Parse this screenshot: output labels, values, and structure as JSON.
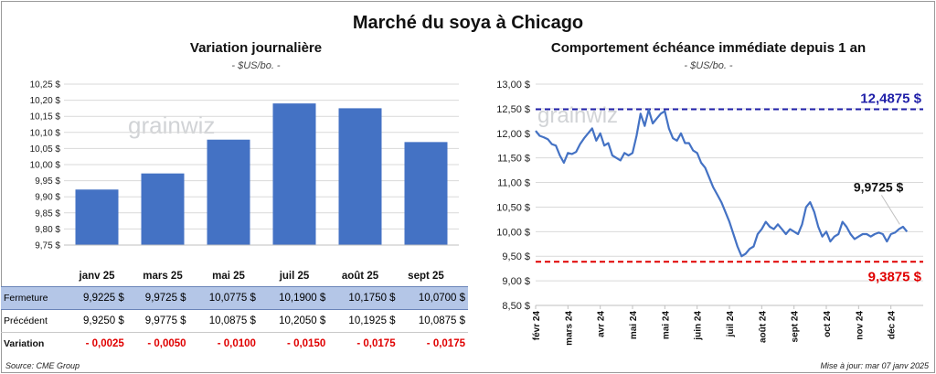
{
  "title": "Marché du soya à Chicago",
  "left": {
    "title": "Variation journalière",
    "subtitle": "- $US/bo. -",
    "watermark": "grainwiz",
    "table": {
      "rows": [
        {
          "label": "Fermeture",
          "values": [
            "9,9225 $",
            "9,9725 $",
            "10,0775 $",
            "10,1900 $",
            "10,1750 $",
            "10,0700 $"
          ]
        },
        {
          "label": "Précédent",
          "values": [
            "9,9250 $",
            "9,9775 $",
            "10,0875 $",
            "10,2050 $",
            "10,1925 $",
            "10,0875 $"
          ]
        },
        {
          "label": "Variation",
          "values": [
            "- 0,0025",
            "- 0,0050",
            "- 0,0100",
            "- 0,0150",
            "- 0,0175",
            "- 0,0175"
          ]
        }
      ]
    }
  },
  "right": {
    "title": "Comportement échéance immédiate depuis 1 an",
    "subtitle": "- $US/bo. -",
    "watermark": "grainwiz"
  },
  "footer": {
    "source": "Source: CME Group",
    "updated": "Mise à jour: mar 07 janv 2025"
  },
  "chart_data": [
    {
      "type": "bar",
      "categories": [
        "janv 25",
        "mars 25",
        "mai 25",
        "juil 25",
        "août 25",
        "sept 25"
      ],
      "values": [
        9.9225,
        9.9725,
        10.0775,
        10.19,
        10.175,
        10.07
      ],
      "ylim": [
        9.75,
        10.25
      ],
      "yticks": [
        9.75,
        9.8,
        9.85,
        9.9,
        9.95,
        10.0,
        10.05,
        10.1,
        10.15,
        10.2,
        10.25
      ],
      "ytick_labels": [
        "9,75 $",
        "9,80 $",
        "9,85 $",
        "9,90 $",
        "9,95 $",
        "10,00 $",
        "10,05 $",
        "10,10 $",
        "10,15 $",
        "10,20 $",
        "10,25 $"
      ],
      "grid": true,
      "color": "#4472c4"
    },
    {
      "type": "line",
      "xlim": [
        0,
        48
      ],
      "x_tick_labels": [
        "févr 24",
        "mars 24",
        "avr 24",
        "mai 24",
        "mai 24",
        "juin 24",
        "juil 24",
        "août 24",
        "sept 24",
        "oct 24",
        "nov 24",
        "déc 24"
      ],
      "x_tick_positions": [
        0,
        4,
        8,
        12,
        16,
        20,
        24,
        28,
        32,
        36,
        40,
        44
      ],
      "ylim": [
        8.5,
        13.0
      ],
      "yticks": [
        8.5,
        9.0,
        9.5,
        10.0,
        10.5,
        11.0,
        11.5,
        12.0,
        12.5,
        13.0
      ],
      "ytick_labels": [
        "8,50 $",
        "9,00 $",
        "9,50 $",
        "10,00 $",
        "10,50 $",
        "11,00 $",
        "11,50 $",
        "12,00 $",
        "12,50 $",
        "13,00 $"
      ],
      "color": "#4472c4",
      "x": [
        0,
        0.5,
        1,
        1.5,
        2,
        2.5,
        3,
        3.5,
        4,
        4.5,
        5,
        5.5,
        6,
        6.5,
        7,
        7.5,
        8,
        8.5,
        9,
        9.5,
        10,
        10.5,
        11,
        11.5,
        12,
        12.5,
        13,
        13.5,
        14,
        14.5,
        15,
        15.5,
        16,
        16.5,
        17,
        17.5,
        18,
        18.5,
        19,
        19.5,
        20,
        20.5,
        21,
        21.5,
        22,
        22.5,
        23,
        23.5,
        24,
        24.5,
        25,
        25.5,
        26,
        26.5,
        27,
        27.5,
        28,
        28.5,
        29,
        29.5,
        30,
        30.5,
        31,
        31.5,
        32,
        32.5,
        33,
        33.5,
        34,
        34.5,
        35,
        35.5,
        36,
        36.5,
        37,
        37.5,
        38,
        38.5,
        39,
        39.5,
        40,
        40.5,
        41,
        41.5,
        42,
        42.5,
        43,
        43.5,
        44,
        44.5,
        45,
        45.5,
        46
      ],
      "y": [
        12.05,
        11.95,
        11.92,
        11.88,
        11.78,
        11.75,
        11.55,
        11.4,
        11.6,
        11.58,
        11.62,
        11.78,
        11.9,
        12.0,
        12.1,
        11.85,
        12.0,
        11.75,
        11.8,
        11.55,
        11.5,
        11.45,
        11.6,
        11.55,
        11.6,
        11.95,
        12.4,
        12.15,
        12.48,
        12.2,
        12.3,
        12.4,
        12.45,
        12.1,
        11.9,
        11.85,
        12.0,
        11.8,
        11.8,
        11.65,
        11.6,
        11.4,
        11.3,
        11.1,
        10.9,
        10.75,
        10.6,
        10.4,
        10.2,
        9.95,
        9.7,
        9.5,
        9.55,
        9.65,
        9.7,
        9.95,
        10.05,
        10.2,
        10.1,
        10.05,
        10.15,
        10.05,
        9.95,
        10.05,
        10.0,
        9.95,
        10.15,
        10.5,
        10.6,
        10.4,
        10.1,
        9.9,
        10.0,
        9.8,
        9.9,
        9.95,
        10.2,
        10.1,
        9.95,
        9.85,
        9.9,
        9.95,
        9.95,
        9.9,
        9.95,
        9.98,
        9.95,
        9.8,
        9.95,
        9.98,
        10.05,
        10.1,
        10.0
      ],
      "reference_lines": [
        {
          "value": 12.4875,
          "label": "12,4875 $",
          "color": "#1f1fa8"
        },
        {
          "value": 9.3875,
          "label": "9,3875 $",
          "color": "#e00000"
        }
      ],
      "annotations": [
        {
          "label": "9,9725 $"
        }
      ]
    }
  ]
}
